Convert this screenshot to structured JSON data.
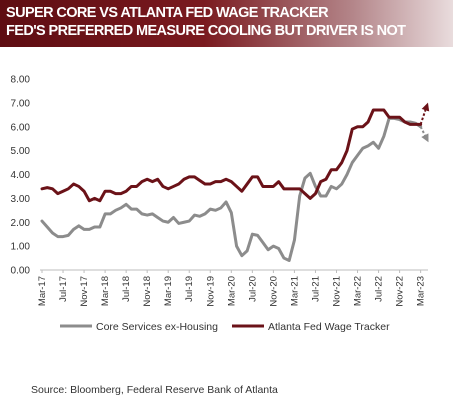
{
  "title_lines": [
    "SUPER CORE VS ATLANTA FED WAGE TRACKER",
    "FED'S PREFERRED MEASURE COOLING BUT DRIVER IS NOT"
  ],
  "source": "Source:  Bloomberg, Federal Reserve Bank of Atlanta",
  "colors": {
    "banner": "#6b1218",
    "core": "#8c8c8c",
    "wage": "#6b1218"
  },
  "chart_data": {
    "type": "line",
    "x_start": "Mar-17",
    "x_step_months": 1,
    "x_ticks": [
      "Mar-17",
      "Jul-17",
      "Nov-17",
      "Mar-18",
      "Jul-18",
      "Nov-18",
      "Mar-19",
      "Jul-19",
      "Nov-19",
      "Mar-20",
      "Jul-20",
      "Nov-20",
      "Mar-21",
      "Jul-21",
      "Nov-21",
      "Mar-22",
      "Jul-22",
      "Nov-22",
      "Mar-23"
    ],
    "ylim": [
      0,
      8
    ],
    "y_ticks": [
      "0.00",
      "1.00",
      "2.00",
      "3.00",
      "4.00",
      "5.00",
      "6.00",
      "7.00",
      "8.00"
    ],
    "grid": false,
    "legend_position": "bottom",
    "series": [
      {
        "name": "Core Services ex-Housing",
        "color": "#8c8c8c",
        "values": [
          2.05,
          1.8,
          1.55,
          1.4,
          1.4,
          1.45,
          1.7,
          1.85,
          1.7,
          1.7,
          1.8,
          1.8,
          2.35,
          2.35,
          2.5,
          2.6,
          2.75,
          2.55,
          2.55,
          2.35,
          2.3,
          2.35,
          2.2,
          2.05,
          2.0,
          2.2,
          1.95,
          2.0,
          2.05,
          2.3,
          2.25,
          2.35,
          2.55,
          2.5,
          2.6,
          2.85,
          2.4,
          1.0,
          0.6,
          0.8,
          1.5,
          1.45,
          1.15,
          0.85,
          1.0,
          0.9,
          0.5,
          0.4,
          1.25,
          3.1,
          3.85,
          4.05,
          3.5,
          3.1,
          3.1,
          3.5,
          3.4,
          3.6,
          4.0,
          4.5,
          4.8,
          5.1,
          5.2,
          5.35,
          5.1,
          5.6,
          6.35,
          6.35,
          6.3,
          6.2,
          6.2,
          6.15,
          6.0
        ]
      },
      {
        "name": "Atlanta Fed Wage Tracker",
        "color": "#6b1218",
        "values": [
          3.4,
          3.45,
          3.4,
          3.2,
          3.3,
          3.4,
          3.6,
          3.5,
          3.3,
          2.9,
          3.0,
          2.9,
          3.3,
          3.3,
          3.2,
          3.2,
          3.3,
          3.5,
          3.5,
          3.7,
          3.8,
          3.7,
          3.8,
          3.5,
          3.4,
          3.5,
          3.6,
          3.8,
          3.9,
          3.9,
          3.75,
          3.6,
          3.6,
          3.7,
          3.7,
          3.8,
          3.7,
          3.5,
          3.3,
          3.6,
          3.9,
          3.9,
          3.5,
          3.5,
          3.5,
          3.7,
          3.4,
          3.4,
          3.4,
          3.4,
          3.2,
          3.0,
          3.2,
          3.7,
          3.8,
          4.2,
          4.2,
          4.5,
          5.0,
          5.9,
          6.0,
          6.0,
          6.2,
          6.7,
          6.7,
          6.7,
          6.4,
          6.4,
          6.4,
          6.2,
          6.1,
          6.1,
          6.1
        ]
      }
    ],
    "projections": [
      {
        "series": "Atlanta Fed Wage Tracker",
        "to": 6.85,
        "color": "#6b1218"
      },
      {
        "series": "Core Services ex-Housing",
        "to": 5.5,
        "color": "#8c8c8c"
      }
    ]
  }
}
